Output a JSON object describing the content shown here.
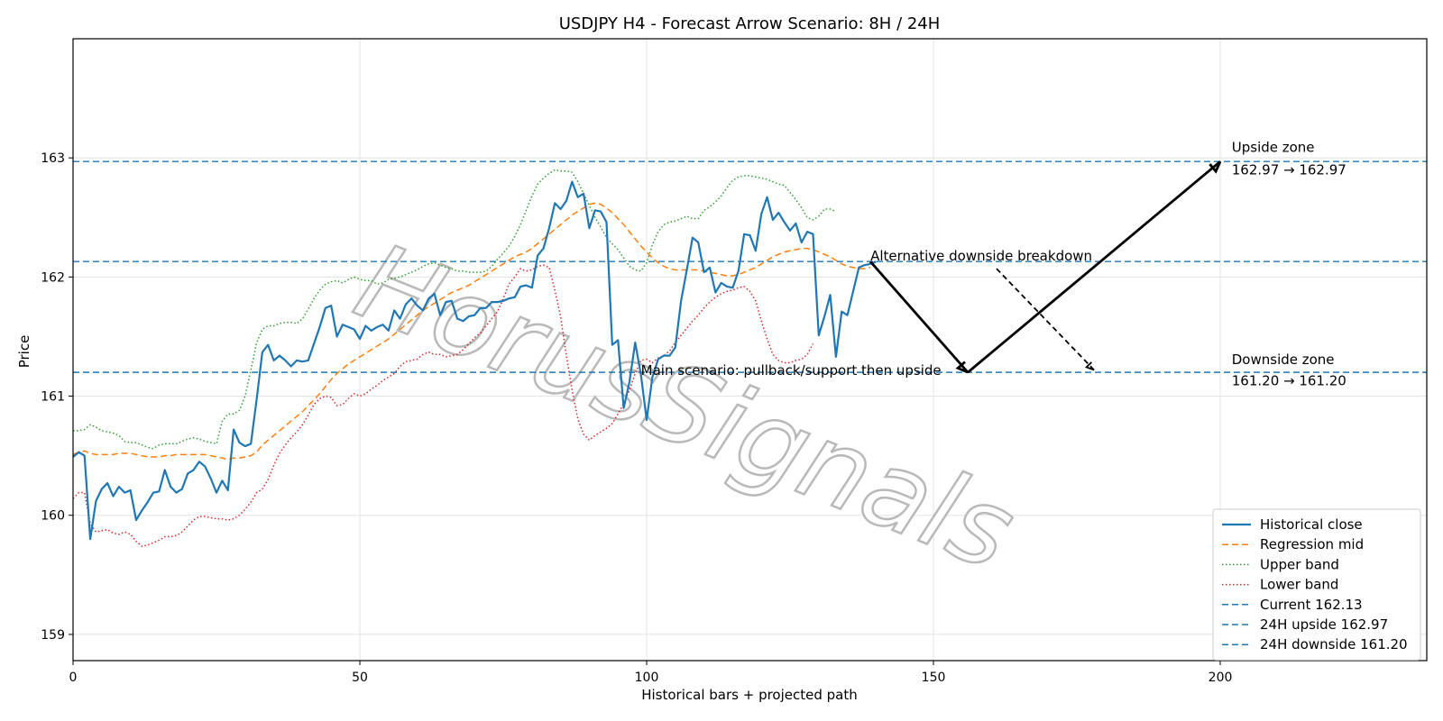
{
  "chart_data": {
    "type": "line",
    "title": "USDJPY H4 - Forecast Arrow Scenario: 8H / 24H",
    "xlabel": "Historical bars + projected path",
    "ylabel": "Price",
    "xlim": [
      0,
      236
    ],
    "ylim": [
      158.78,
      164.0
    ],
    "xticks": [
      0,
      50,
      100,
      150,
      200
    ],
    "yticks": [
      159,
      160,
      161,
      162,
      163
    ],
    "grid": true,
    "legend_position": "lower-right",
    "watermark": "HorusSignals",
    "series": [
      {
        "name": "Historical close",
        "color": "#1f77b4",
        "style": "solid",
        "y": [
          160.49,
          160.53,
          160.5,
          159.8,
          160.12,
          160.22,
          160.27,
          160.16,
          160.24,
          160.19,
          160.21,
          159.96,
          160.04,
          160.11,
          160.19,
          160.2,
          160.38,
          160.24,
          160.19,
          160.22,
          160.35,
          160.38,
          160.45,
          160.41,
          160.31,
          160.19,
          160.29,
          160.21,
          160.72,
          160.61,
          160.58,
          160.6,
          160.97,
          161.37,
          161.43,
          161.3,
          161.34,
          161.3,
          161.25,
          161.3,
          161.29,
          161.3,
          161.44,
          161.58,
          161.74,
          161.76,
          161.5,
          161.6,
          161.58,
          161.56,
          161.48,
          161.59,
          161.55,
          161.58,
          161.6,
          161.55,
          161.72,
          161.65,
          161.77,
          161.82,
          161.76,
          161.72,
          161.82,
          161.86,
          161.68,
          161.79,
          161.8,
          161.65,
          161.63,
          161.67,
          161.68,
          161.74,
          161.74,
          161.79,
          161.79,
          161.8,
          161.82,
          161.83,
          161.92,
          161.93,
          161.91,
          162.18,
          162.24,
          162.41,
          162.62,
          162.57,
          162.64,
          162.8,
          162.67,
          162.7,
          162.41,
          162.56,
          162.55,
          162.46,
          161.43,
          161.47,
          160.9,
          161.12,
          161.45,
          161.18,
          160.8,
          161.16,
          161.31,
          161.34,
          161.34,
          161.41,
          161.8,
          162.06,
          162.33,
          162.29,
          162.04,
          162.08,
          161.87,
          161.95,
          161.92,
          161.91,
          162.05,
          162.36,
          162.35,
          162.22,
          162.53,
          162.67,
          162.48,
          162.54,
          162.46,
          162.39,
          162.45,
          162.29,
          162.38,
          162.36,
          161.51,
          161.67,
          161.85,
          161.33,
          161.71,
          161.68,
          161.88,
          162.08,
          162.1,
          162.11,
          162.13
        ]
      },
      {
        "name": "Regression mid",
        "color": "#ff7f0e",
        "style": "dashed",
        "y": [
          160.51,
          160.53,
          160.54,
          160.52,
          160.51,
          160.51,
          160.51,
          160.51,
          160.52,
          160.52,
          160.52,
          160.51,
          160.5,
          160.49,
          160.49,
          160.49,
          160.5,
          160.5,
          160.51,
          160.51,
          160.51,
          160.51,
          160.51,
          160.51,
          160.5,
          160.49,
          160.48,
          160.47,
          160.48,
          160.48,
          160.49,
          160.5,
          160.53,
          160.59,
          160.63,
          160.67,
          160.71,
          160.75,
          160.79,
          160.83,
          160.87,
          160.92,
          160.97,
          161.02,
          161.08,
          161.14,
          161.19,
          161.23,
          161.27,
          161.3,
          161.33,
          161.36,
          161.39,
          161.42,
          161.45,
          161.48,
          161.52,
          161.56,
          161.6,
          161.64,
          161.68,
          161.72,
          161.75,
          161.78,
          161.81,
          161.84,
          161.87,
          161.89,
          161.91,
          161.93,
          161.96,
          161.99,
          162.02,
          162.05,
          162.08,
          162.11,
          162.14,
          162.17,
          162.19,
          162.21,
          162.24,
          162.28,
          162.32,
          162.36,
          162.4,
          162.44,
          162.48,
          162.52,
          162.55,
          162.58,
          162.61,
          162.62,
          162.61,
          162.58,
          162.54,
          162.49,
          162.44,
          162.38,
          162.32,
          162.26,
          162.21,
          162.16,
          162.12,
          162.09,
          162.07,
          162.06,
          162.06,
          162.06,
          162.06,
          162.06,
          162.05,
          162.04,
          162.03,
          162.02,
          162.01,
          162.01,
          162.02,
          162.04,
          162.06,
          162.08,
          162.11,
          162.14,
          162.17,
          162.19,
          162.21,
          162.22,
          162.23,
          162.24,
          162.24,
          162.23,
          162.21,
          162.19,
          162.17,
          162.14,
          162.11,
          162.09,
          162.08,
          162.07,
          162.07,
          162.08
        ]
      },
      {
        "name": "Upper band",
        "color": "#2ca02c",
        "style": "dotted",
        "y": [
          160.71,
          160.71,
          160.72,
          160.76,
          160.74,
          160.71,
          160.7,
          160.69,
          160.67,
          160.62,
          160.61,
          160.61,
          160.59,
          160.57,
          160.56,
          160.59,
          160.6,
          160.6,
          160.6,
          160.62,
          160.64,
          160.65,
          160.64,
          160.62,
          160.61,
          160.6,
          160.79,
          160.85,
          160.85,
          160.88,
          161.0,
          161.22,
          161.45,
          161.56,
          161.59,
          161.59,
          161.61,
          161.62,
          161.62,
          161.61,
          161.65,
          161.73,
          161.82,
          161.89,
          161.94,
          161.96,
          161.97,
          161.95,
          161.98,
          162.0,
          161.98,
          161.97,
          161.97,
          161.94,
          161.95,
          161.98,
          161.99,
          162.0,
          162.02,
          162.04,
          162.06,
          162.09,
          162.11,
          162.12,
          162.1,
          162.08,
          162.07,
          162.05,
          162.05,
          162.04,
          162.04,
          162.04,
          162.05,
          162.09,
          162.15,
          162.2,
          162.26,
          162.34,
          162.44,
          162.56,
          162.68,
          162.78,
          162.83,
          162.87,
          162.9,
          162.89,
          162.89,
          162.88,
          162.8,
          162.7,
          162.6,
          162.5,
          162.42,
          162.33,
          162.28,
          162.23,
          162.16,
          162.09,
          162.06,
          162.05,
          162.12,
          162.27,
          162.38,
          162.44,
          162.46,
          162.47,
          162.49,
          162.51,
          162.49,
          162.49,
          162.56,
          162.59,
          162.63,
          162.68,
          162.75,
          162.81,
          162.84,
          162.85,
          162.85,
          162.84,
          162.83,
          162.82,
          162.8,
          162.78,
          162.77,
          162.71,
          162.65,
          162.58,
          162.5,
          162.48,
          162.51,
          162.57,
          162.57,
          162.55
        ]
      },
      {
        "name": "Lower band",
        "color": "#d62728",
        "style": "dotted",
        "y": [
          160.14,
          160.19,
          160.19,
          159.93,
          159.86,
          159.87,
          159.88,
          159.85,
          159.84,
          159.86,
          159.84,
          159.78,
          159.74,
          159.75,
          159.77,
          159.79,
          159.82,
          159.82,
          159.83,
          159.86,
          159.91,
          159.96,
          159.99,
          159.99,
          159.98,
          159.97,
          159.97,
          159.96,
          159.97,
          160.0,
          160.05,
          160.11,
          160.19,
          160.22,
          160.3,
          160.42,
          160.52,
          160.59,
          160.65,
          160.7,
          160.76,
          160.84,
          160.93,
          160.98,
          161.0,
          160.99,
          160.92,
          160.93,
          160.98,
          161.02,
          161.0,
          161.02,
          161.06,
          161.09,
          161.13,
          161.16,
          161.19,
          161.25,
          161.29,
          161.3,
          161.31,
          161.35,
          161.37,
          161.35,
          161.35,
          161.33,
          161.34,
          161.35,
          161.39,
          161.44,
          161.49,
          161.53,
          161.59,
          161.65,
          161.71,
          161.82,
          161.94,
          162.0,
          162.07,
          162.05,
          162.06,
          162.09,
          162.1,
          162.08,
          161.89,
          161.67,
          161.34,
          161.05,
          160.81,
          160.68,
          160.63,
          160.67,
          160.7,
          160.73,
          160.77,
          160.85,
          160.94,
          161.05,
          161.19,
          161.3,
          161.31,
          161.28,
          161.32,
          161.34,
          161.38,
          161.45,
          161.51,
          161.57,
          161.63,
          161.68,
          161.74,
          161.79,
          161.83,
          161.86,
          161.88,
          161.89,
          161.91,
          161.92,
          161.88,
          161.8,
          161.63,
          161.48,
          161.35,
          161.3,
          161.28,
          161.28,
          161.3,
          161.31,
          161.35,
          161.44
        ]
      }
    ],
    "reference_lines": [
      {
        "name": "Current 162.13",
        "value": 162.13,
        "color": "#1f77b4",
        "style": "dashed"
      },
      {
        "name": "24H upside 162.97",
        "value": 162.97,
        "color": "#1f77b4",
        "style": "dashed"
      },
      {
        "name": "24H downside 161.20",
        "value": 161.2,
        "color": "#1f77b4",
        "style": "dashed"
      }
    ],
    "arrows": [
      {
        "from": [
          139,
          162.13
        ],
        "to": [
          156,
          161.2
        ],
        "style": "solid"
      },
      {
        "from": [
          156,
          161.2
        ],
        "to": [
          200,
          162.97
        ],
        "style": "solid"
      },
      {
        "from": [
          161,
          162.07
        ],
        "to": [
          178,
          161.22
        ],
        "style": "dashed"
      }
    ],
    "annotations": [
      {
        "text": "Upside zone",
        "x": 202,
        "y": 163.05
      },
      {
        "text": "162.97 → 162.97",
        "x": 202,
        "y": 162.86
      },
      {
        "text": "Alternative downside breakdown",
        "x": 139,
        "y": 162.14
      },
      {
        "text": "Main scenario: pullback/support then upside",
        "x": 99,
        "y": 161.18
      },
      {
        "text": "Downside zone",
        "x": 202,
        "y": 161.27
      },
      {
        "text": "161.20 → 161.20",
        "x": 202,
        "y": 161.09
      }
    ]
  }
}
